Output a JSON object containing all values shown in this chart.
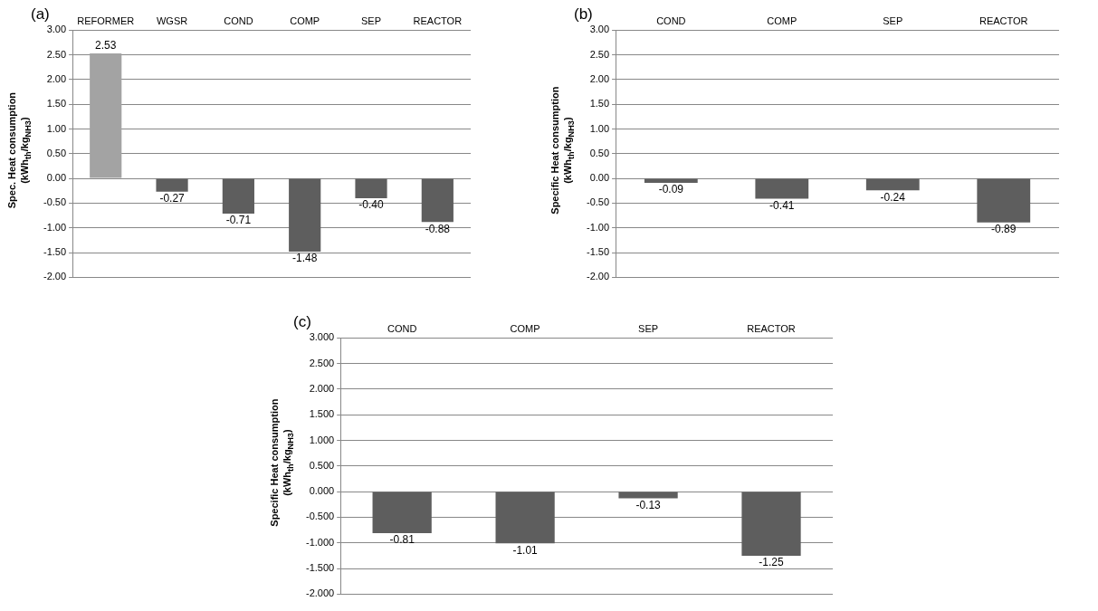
{
  "chart_data": [
    {
      "type": "bar",
      "title": "(a)",
      "ylabel": "Spec. Heat consumption (kWh$_{th}$/kg$_{NH3}$)",
      "categories": [
        "REFORMER",
        "WGSR",
        "COND",
        "COMP",
        "SEP",
        "REACTOR"
      ],
      "values": [
        2.53,
        -0.27,
        -0.71,
        -1.48,
        -0.4,
        -0.88
      ],
      "value_labels": [
        "2.53",
        "-0.27",
        "-0.71",
        "-1.48",
        "-0.40",
        "-0.88"
      ],
      "colors": [
        "#a3a3a3",
        "#5e5e5e",
        "#5e5e5e",
        "#5e5e5e",
        "#5e5e5e",
        "#5e5e5e"
      ],
      "ylim": [
        -2,
        3
      ],
      "yticks": [
        {
          "value": 3,
          "label": "3.00"
        },
        {
          "value": 2.5,
          "label": "2.50"
        },
        {
          "value": 2,
          "label": "2.00"
        },
        {
          "value": 1.5,
          "label": "1.50"
        },
        {
          "value": 1,
          "label": "1.00"
        },
        {
          "value": 0.5,
          "label": "0.50"
        },
        {
          "value": 0,
          "label": "0.00"
        },
        {
          "value": -0.5,
          "label": "-0.50"
        },
        {
          "value": -1,
          "label": "-1.00"
        },
        {
          "value": -1.5,
          "label": "-1.50"
        },
        {
          "value": -2,
          "label": "-2.00"
        }
      ],
      "grid": "y"
    },
    {
      "type": "bar",
      "title": "(b)",
      "ylabel": "Specific Heat consumption (kWh$_{th}$/kg$_{NH3}$)",
      "categories": [
        "COND",
        "COMP",
        "SEP",
        "REACTOR"
      ],
      "values": [
        -0.09,
        -0.41,
        -0.24,
        -0.89
      ],
      "value_labels": [
        "-0.09",
        "-0.41",
        "-0.24",
        "-0.89"
      ],
      "color": "#5e5e5e",
      "ylim": [
        -2,
        3
      ],
      "yticks": [
        {
          "value": 3,
          "label": "3.00"
        },
        {
          "value": 2.5,
          "label": "2.50"
        },
        {
          "value": 2,
          "label": "2.00"
        },
        {
          "value": 1.5,
          "label": "1.50"
        },
        {
          "value": 1,
          "label": "1.00"
        },
        {
          "value": 0.5,
          "label": "0.50"
        },
        {
          "value": 0,
          "label": "0.00"
        },
        {
          "value": -0.5,
          "label": "-0.50"
        },
        {
          "value": -1,
          "label": "-1.00"
        },
        {
          "value": -1.5,
          "label": "-1.50"
        },
        {
          "value": -2,
          "label": "-2.00"
        }
      ],
      "grid": "y"
    },
    {
      "type": "bar",
      "title": "(c)",
      "ylabel": "Specific Heat consumption (kWh$_{th}$/kg$_{NH3}$)",
      "categories": [
        "COND",
        "COMP",
        "SEP",
        "REACTOR"
      ],
      "values": [
        -0.81,
        -1.01,
        -0.13,
        -1.25
      ],
      "value_labels": [
        "-0.81",
        "-1.01",
        "-0.13",
        "-1.25"
      ],
      "color": "#5e5e5e",
      "ylim": [
        -2,
        3
      ],
      "yticks": [
        {
          "value": 3,
          "label": "3.000"
        },
        {
          "value": 2.5,
          "label": "2.500"
        },
        {
          "value": 2,
          "label": "2.000"
        },
        {
          "value": 1.5,
          "label": "1.500"
        },
        {
          "value": 1,
          "label": "1.000"
        },
        {
          "value": 0.5,
          "label": "0.500"
        },
        {
          "value": 0,
          "label": "0.000"
        },
        {
          "value": -0.5,
          "label": "-0.500"
        },
        {
          "value": -1,
          "label": "-1.000"
        },
        {
          "value": -1.5,
          "label": "-1.500"
        },
        {
          "value": -2,
          "label": "-2.000"
        }
      ],
      "grid": "y"
    }
  ]
}
